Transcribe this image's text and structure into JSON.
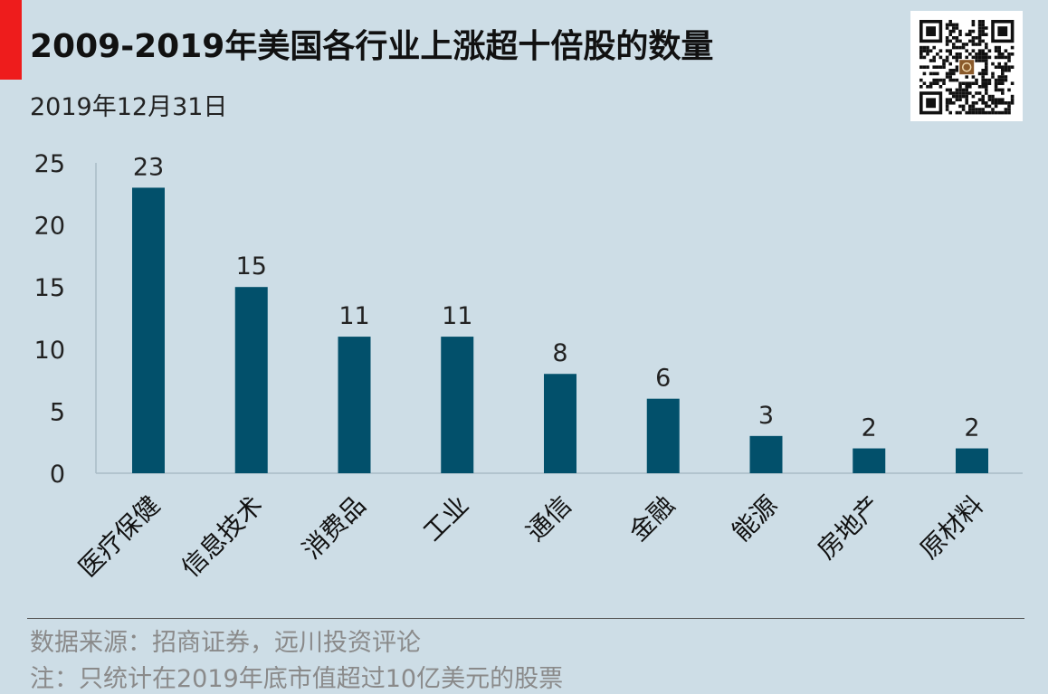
{
  "header": {
    "title": "2009-2019年美国各行业上涨超十倍股的数量",
    "date": "2019年12月31日",
    "accent_color": "#ee1c1c",
    "qr_icon": "qr-code-icon"
  },
  "chart_data": {
    "type": "bar",
    "categories": [
      "医疗保健",
      "信息技术",
      "消费品",
      "工业",
      "通信",
      "金融",
      "能源",
      "房地产",
      "原材料"
    ],
    "values": [
      23,
      15,
      11,
      11,
      8,
      6,
      3,
      2,
      2
    ],
    "title": "2009-2019年美国各行业上涨超十倍股的数量",
    "xlabel": "",
    "ylabel": "",
    "ylim": [
      0,
      25
    ],
    "yticks": [
      0,
      5,
      10,
      15,
      20,
      25
    ],
    "grid": false,
    "legend": "none",
    "bar_color": "#02506b",
    "data_labels": true
  },
  "footer": {
    "source": "数据来源：招商证券，远川投资评论",
    "note": "注：只统计在2019年底市值超过10亿美元的股票"
  }
}
